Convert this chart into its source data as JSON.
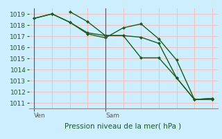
{
  "title": "Pression niveau de la mer( hPa )",
  "bg_color": "#cceeff",
  "grid_color": "#f0c0c0",
  "line_color": "#1a5c1a",
  "ylim": [
    1010.5,
    1019.5
  ],
  "yticks": [
    1011,
    1012,
    1013,
    1014,
    1015,
    1016,
    1017,
    1018,
    1019
  ],
  "line1_x": [
    0,
    1,
    2,
    3,
    4,
    5,
    6,
    7,
    8,
    9,
    10
  ],
  "line1_y": [
    1018.6,
    1019.0,
    1018.25,
    1017.2,
    1016.85,
    1017.75,
    1018.1,
    1016.75,
    1014.85,
    1011.3,
    1011.3
  ],
  "line2_x": [
    0,
    1,
    2,
    3,
    4,
    5,
    6,
    7,
    8,
    9,
    10
  ],
  "line2_y": [
    1018.6,
    1019.0,
    1018.25,
    1017.3,
    1017.05,
    1017.05,
    1016.9,
    1016.35,
    1013.25,
    1011.3,
    1011.4
  ],
  "line3_x": [
    2,
    3,
    4,
    5,
    6,
    7,
    8,
    9,
    10
  ],
  "line3_y": [
    1019.2,
    1018.3,
    1017.05,
    1017.05,
    1015.05,
    1015.05,
    1013.25,
    1011.3,
    1011.4
  ],
  "ven_x": 0,
  "sam_x": 4,
  "xtick_positions": [
    0,
    4
  ],
  "xtick_labels": [
    "Ven",
    "Sam"
  ],
  "xlim": [
    -0.3,
    10.3
  ],
  "num_xgrid": 11
}
